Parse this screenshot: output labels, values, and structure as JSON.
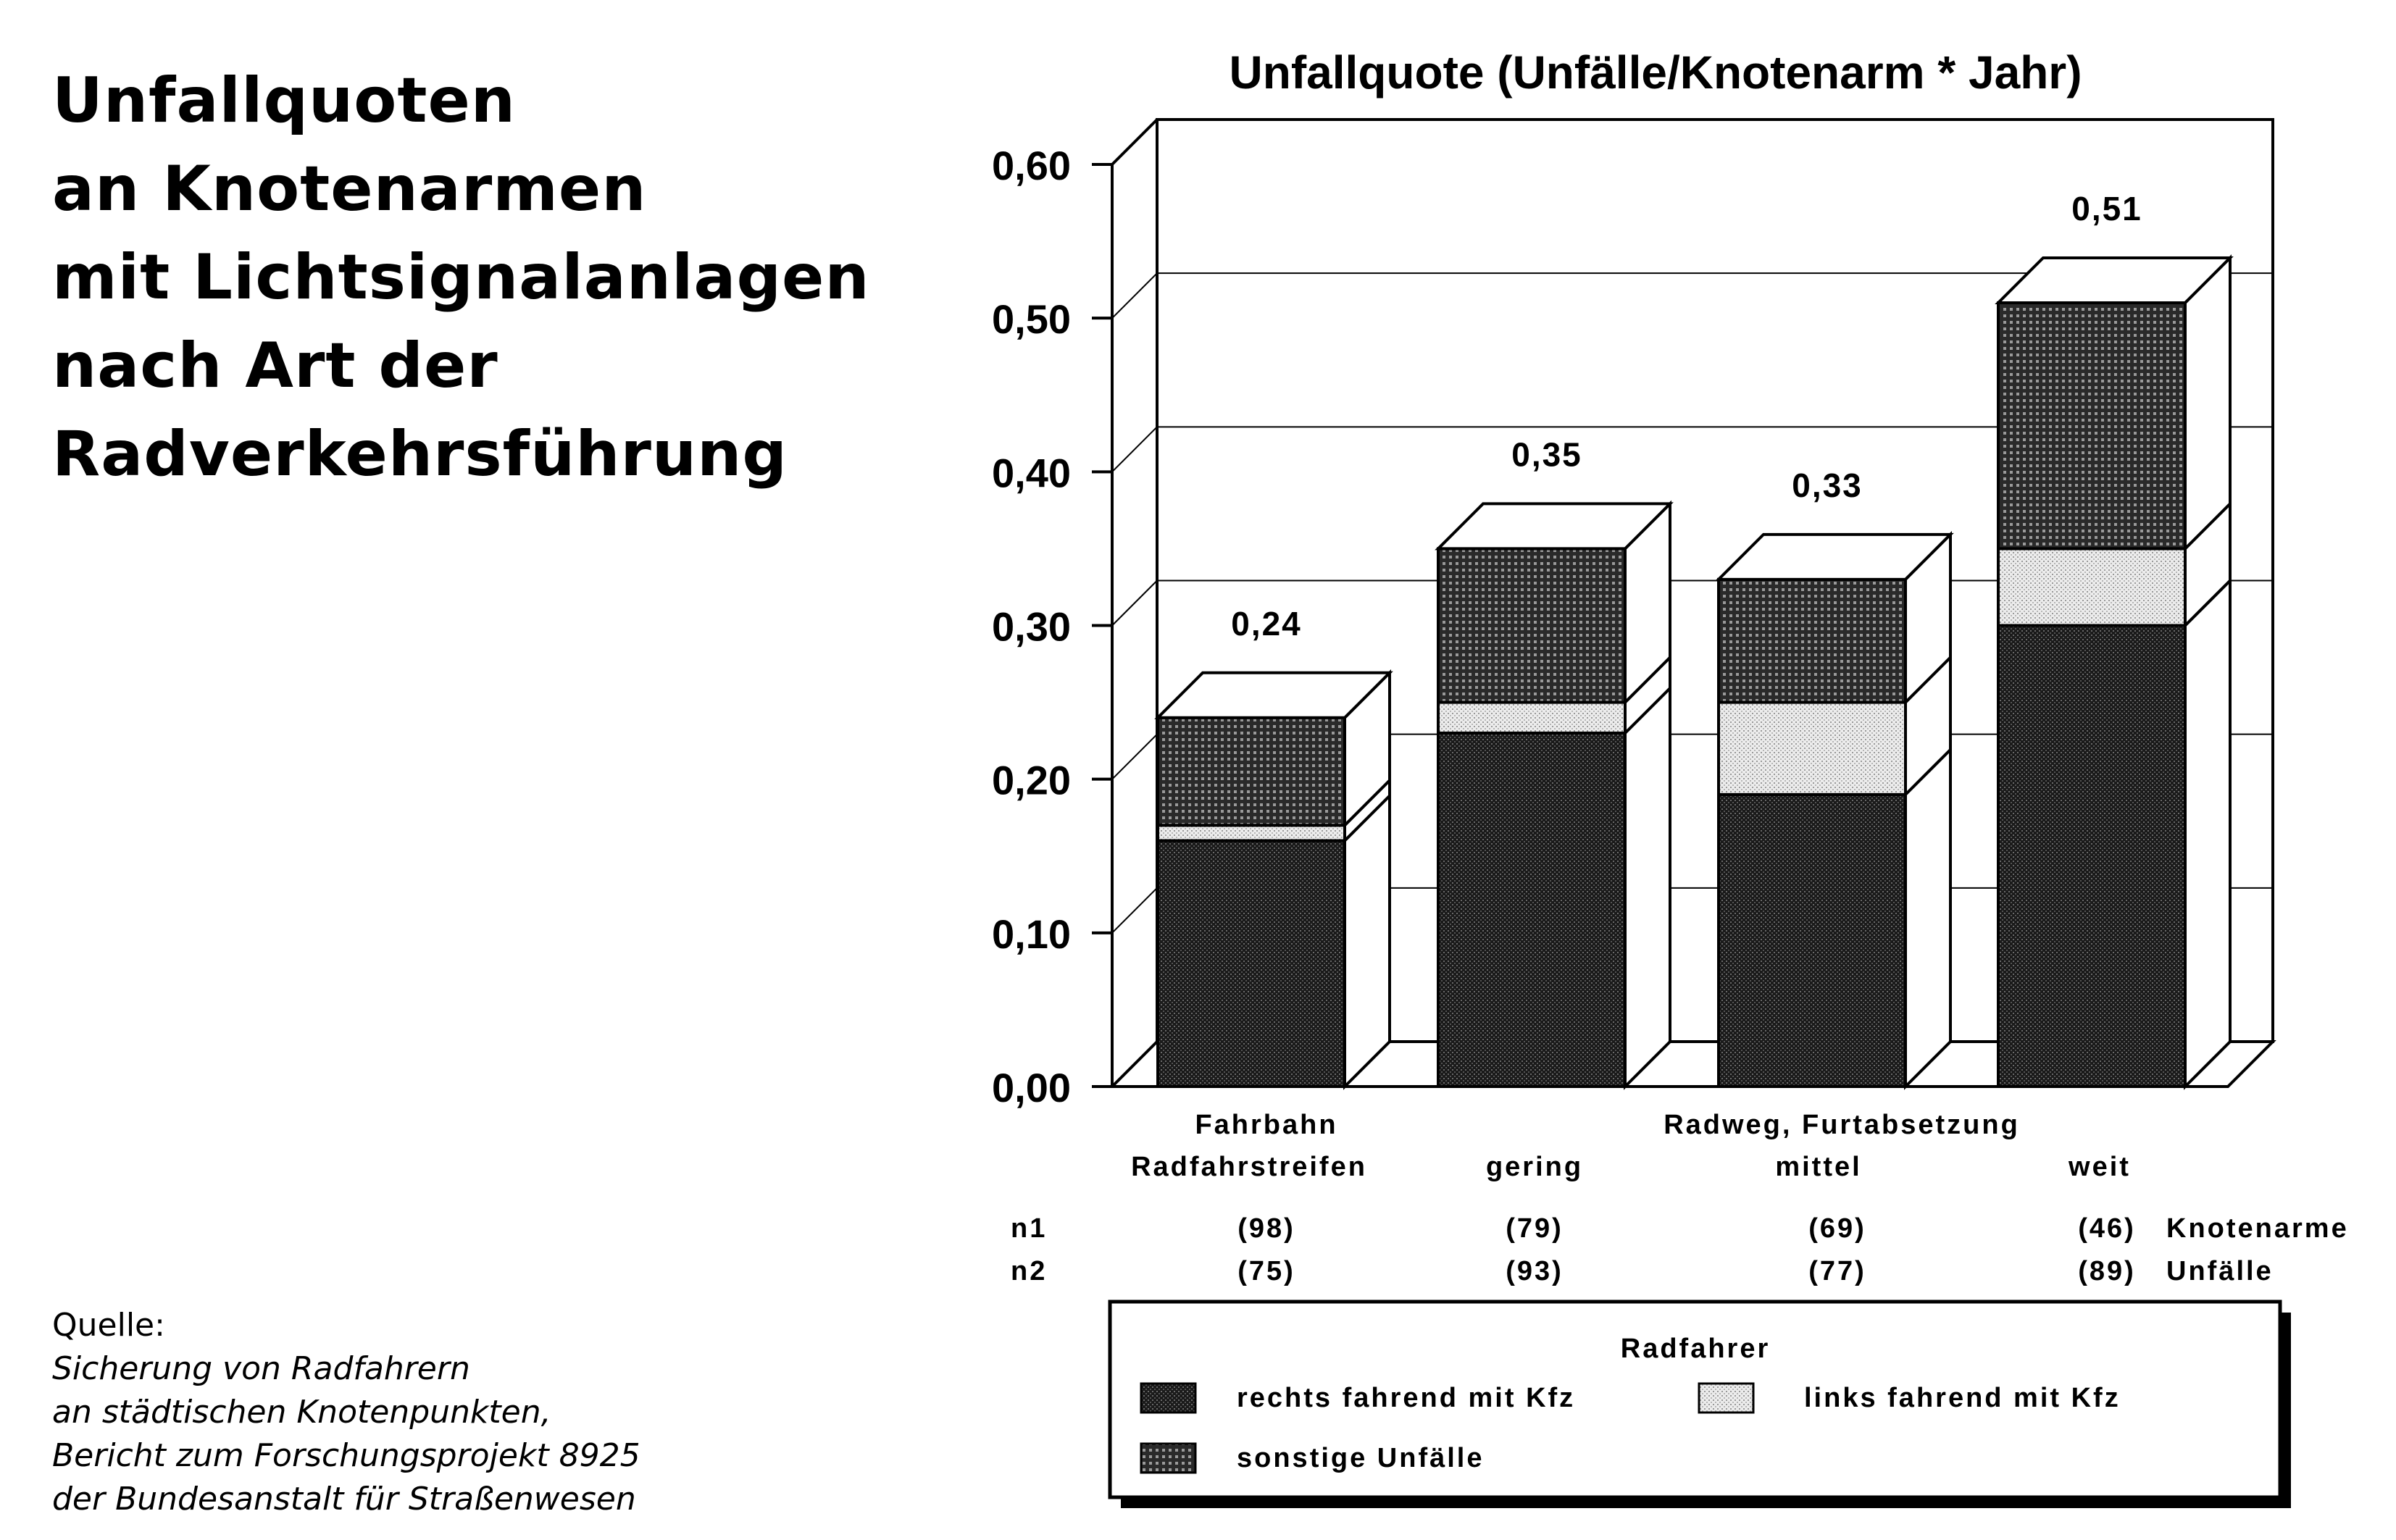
{
  "heading": {
    "lines": [
      "Unfallquoten",
      "an Knotenarmen",
      "mit Lichtsignalanlagen",
      "nach Art der",
      "Radverkehrsführung"
    ]
  },
  "source": {
    "label": "Quelle:",
    "lines": [
      "Sicherung von Radfahrern",
      "an städtischen Knotenpunkten,",
      "Bericht zum Forschungsprojekt 8925",
      "der Bundesanstalt für Straßenwesen"
    ]
  },
  "chart_data": {
    "type": "bar",
    "stacked": true,
    "style": "3d",
    "title": "Unfallquote (Unfälle/Knotenarm * Jahr)",
    "ylim": [
      0,
      0.6
    ],
    "yticks": [
      "0,00",
      "0,10",
      "0,20",
      "0,30",
      "0,40",
      "0,50",
      "0,60"
    ],
    "grid": true,
    "categories": [
      {
        "lines": [
          "Fahrbahn",
          "Radfahrstreifen"
        ]
      },
      {
        "lines": [
          "gering"
        ]
      },
      {
        "lines": [
          "mittel"
        ]
      },
      {
        "lines": [
          "weit"
        ]
      }
    ],
    "group_label": "Radweg, Furtabsetzung",
    "totals": [
      0.24,
      0.35,
      0.33,
      0.51
    ],
    "total_labels": [
      "0,24",
      "0,35",
      "0,33",
      "0,51"
    ],
    "series": [
      {
        "name": "rechts fahrend mit Kfz",
        "pattern": "dark",
        "values": [
          0.16,
          0.23,
          0.19,
          0.3
        ]
      },
      {
        "name": "links fahrend mit Kfz",
        "pattern": "light",
        "values": [
          0.01,
          0.02,
          0.06,
          0.05
        ]
      },
      {
        "name": "sonstige Unfälle",
        "pattern": "grid",
        "values": [
          0.07,
          0.1,
          0.08,
          0.16
        ]
      }
    ],
    "counts": [
      {
        "label": "n1",
        "values": [
          "(98)",
          "(79)",
          "(69)",
          "(46)"
        ],
        "unit": "Knotenarme"
      },
      {
        "label": "n2",
        "values": [
          "(75)",
          "(93)",
          "(77)",
          "(89)"
        ],
        "unit": "Unfälle"
      }
    ],
    "legend": {
      "title": "Radfahrer",
      "position": "bottom"
    }
  }
}
